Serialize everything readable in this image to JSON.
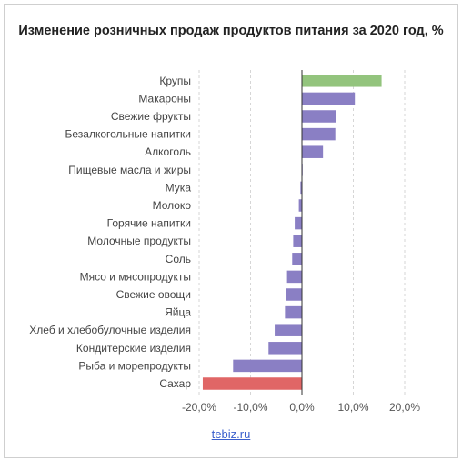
{
  "chart_data": {
    "type": "bar",
    "orientation": "horizontal",
    "title": "Изменение розничных продаж продуктов питания за 2020 год, %",
    "categories": [
      "Крупы",
      "Макароны",
      "Свежие фрукты",
      "Безалкогольные напитки",
      "Алкоголь",
      "Пищевые масла и жиры",
      "Мука",
      "Молоко",
      "Горячие напитки",
      "Молочные продукты",
      "Соль",
      "Мясо и мясопродукты",
      "Свежие овощи",
      "Яйца",
      "Хлеб и хлебобулочные изделия",
      "Кондитерские изделия",
      "Рыба и морепродукты",
      "Сахар"
    ],
    "values": [
      15.5,
      10.3,
      6.7,
      6.5,
      4.1,
      0.1,
      -0.3,
      -0.6,
      -1.4,
      -1.7,
      -1.9,
      -2.9,
      -3.1,
      -3.3,
      -5.3,
      -6.5,
      -13.4,
      -19.3
    ],
    "colors": {
      "default": "#8a7fc4",
      "max": "#93c47d",
      "min": "#e06666"
    },
    "xlim": [
      -20,
      20
    ],
    "xticks": [
      -20,
      -10,
      0,
      10,
      20
    ],
    "xtick_labels": [
      "-20,0%",
      "-10,0%",
      "0,0%",
      "10,0%",
      "20,0%"
    ],
    "grid": "vertical dashed",
    "source": "tebiz.ru"
  }
}
